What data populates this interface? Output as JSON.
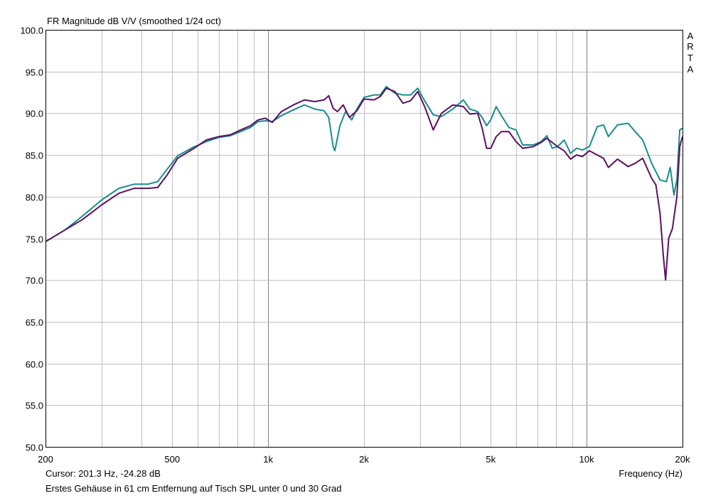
{
  "title": "FR Magnitude dB V/V (smoothed 1/24 oct)",
  "brand": [
    "A",
    "R",
    "T",
    "A"
  ],
  "cursor": "Cursor: 201.3 Hz, -24.28 dB",
  "caption": "Erstes Gehäuse in 61 cm Entfernung auf Tisch SPL unter 0 und 30 Grad",
  "colors": {
    "background": "#ffffff",
    "grid": "#c0c0c0",
    "axis": "#000000"
  },
  "chart_data": {
    "type": "line",
    "title": "FR Magnitude dB V/V (smoothed 1/24 oct)",
    "xlabel": "Frequency (Hz)",
    "ylabel": "",
    "xscale": "log",
    "xlim": [
      200,
      20000
    ],
    "ylim": [
      50,
      100
    ],
    "grid": true,
    "x_ticks": [
      {
        "value": 200,
        "label": "200"
      },
      {
        "value": 500,
        "label": "500"
      },
      {
        "value": 1000,
        "label": "1k"
      },
      {
        "value": 2000,
        "label": "2k"
      },
      {
        "value": 5000,
        "label": "5k"
      },
      {
        "value": 10000,
        "label": "10k"
      },
      {
        "value": 20000,
        "label": "20k"
      }
    ],
    "y_ticks": [
      "100.0",
      "95.0",
      "90.0",
      "85.0",
      "80.0",
      "75.0",
      "70.0",
      "65.0",
      "60.0",
      "55.0",
      "50.0"
    ],
    "series": [
      {
        "color": "#1a8c8c",
        "points": [
          [
            200,
            74.6
          ],
          [
            230,
            76.0
          ],
          [
            260,
            77.6
          ],
          [
            300,
            79.6
          ],
          [
            340,
            81.0
          ],
          [
            380,
            81.5
          ],
          [
            420,
            81.5
          ],
          [
            450,
            81.8
          ],
          [
            480,
            83.2
          ],
          [
            520,
            84.9
          ],
          [
            580,
            85.9
          ],
          [
            640,
            86.6
          ],
          [
            700,
            87.1
          ],
          [
            760,
            87.3
          ],
          [
            820,
            87.8
          ],
          [
            880,
            88.3
          ],
          [
            930,
            89.0
          ],
          [
            980,
            89.1
          ],
          [
            1030,
            89.0
          ],
          [
            1100,
            89.7
          ],
          [
            1200,
            90.4
          ],
          [
            1300,
            91.0
          ],
          [
            1400,
            90.5
          ],
          [
            1500,
            90.3
          ],
          [
            1550,
            89.5
          ],
          [
            1600,
            86.0
          ],
          [
            1620,
            85.5
          ],
          [
            1680,
            88.5
          ],
          [
            1750,
            90.2
          ],
          [
            1830,
            89.2
          ],
          [
            1900,
            90.5
          ],
          [
            2000,
            91.9
          ],
          [
            2150,
            92.2
          ],
          [
            2250,
            92.2
          ],
          [
            2350,
            93.2
          ],
          [
            2500,
            92.4
          ],
          [
            2650,
            92.2
          ],
          [
            2800,
            92.2
          ],
          [
            2950,
            93.0
          ],
          [
            3100,
            91.5
          ],
          [
            3300,
            89.8
          ],
          [
            3500,
            89.6
          ],
          [
            3800,
            90.5
          ],
          [
            4100,
            91.6
          ],
          [
            4300,
            90.5
          ],
          [
            4550,
            90.2
          ],
          [
            4700,
            89.5
          ],
          [
            4850,
            88.5
          ],
          [
            5000,
            89.2
          ],
          [
            5200,
            90.8
          ],
          [
            5400,
            89.7
          ],
          [
            5700,
            88.3
          ],
          [
            6000,
            88.0
          ],
          [
            6300,
            86.2
          ],
          [
            6800,
            86.2
          ],
          [
            7200,
            86.6
          ],
          [
            7500,
            87.3
          ],
          [
            7800,
            85.8
          ],
          [
            8100,
            86.0
          ],
          [
            8500,
            86.8
          ],
          [
            8900,
            85.2
          ],
          [
            9300,
            85.8
          ],
          [
            9700,
            85.6
          ],
          [
            10200,
            86.0
          ],
          [
            10800,
            88.4
          ],
          [
            11300,
            88.6
          ],
          [
            11700,
            87.2
          ],
          [
            12500,
            88.6
          ],
          [
            13500,
            88.8
          ],
          [
            14200,
            87.8
          ],
          [
            15000,
            86.8
          ],
          [
            16000,
            84.0
          ],
          [
            17000,
            82.0
          ],
          [
            17800,
            81.8
          ],
          [
            18300,
            83.5
          ],
          [
            18800,
            80.2
          ],
          [
            19200,
            82.0
          ],
          [
            19600,
            88.0
          ],
          [
            20000,
            88.2
          ]
        ]
      },
      {
        "color": "#5b1060",
        "points": [
          [
            200,
            74.6
          ],
          [
            230,
            76.0
          ],
          [
            260,
            77.2
          ],
          [
            300,
            79.0
          ],
          [
            340,
            80.4
          ],
          [
            380,
            81.0
          ],
          [
            420,
            81.0
          ],
          [
            450,
            81.1
          ],
          [
            480,
            82.5
          ],
          [
            520,
            84.6
          ],
          [
            580,
            85.7
          ],
          [
            640,
            86.8
          ],
          [
            700,
            87.2
          ],
          [
            760,
            87.4
          ],
          [
            820,
            88.0
          ],
          [
            880,
            88.5
          ],
          [
            930,
            89.2
          ],
          [
            980,
            89.4
          ],
          [
            1030,
            88.9
          ],
          [
            1100,
            90.2
          ],
          [
            1200,
            91.0
          ],
          [
            1300,
            91.6
          ],
          [
            1400,
            91.4
          ],
          [
            1500,
            91.6
          ],
          [
            1550,
            92.1
          ],
          [
            1600,
            90.6
          ],
          [
            1650,
            90.2
          ],
          [
            1720,
            91.0
          ],
          [
            1800,
            89.5
          ],
          [
            1900,
            90.3
          ],
          [
            2000,
            91.7
          ],
          [
            2150,
            91.6
          ],
          [
            2250,
            92.0
          ],
          [
            2350,
            93.0
          ],
          [
            2500,
            92.6
          ],
          [
            2650,
            91.2
          ],
          [
            2800,
            91.5
          ],
          [
            2950,
            92.6
          ],
          [
            3100,
            90.8
          ],
          [
            3300,
            88.0
          ],
          [
            3500,
            90.0
          ],
          [
            3800,
            91.0
          ],
          [
            4100,
            90.8
          ],
          [
            4300,
            89.9
          ],
          [
            4550,
            90.0
          ],
          [
            4700,
            88.2
          ],
          [
            4850,
            85.8
          ],
          [
            5000,
            85.8
          ],
          [
            5200,
            87.2
          ],
          [
            5400,
            87.8
          ],
          [
            5700,
            87.8
          ],
          [
            6000,
            86.6
          ],
          [
            6300,
            85.8
          ],
          [
            6800,
            86.0
          ],
          [
            7200,
            86.5
          ],
          [
            7500,
            87.0
          ],
          [
            7800,
            86.5
          ],
          [
            8100,
            86.0
          ],
          [
            8500,
            85.5
          ],
          [
            8900,
            84.5
          ],
          [
            9300,
            85.0
          ],
          [
            9700,
            84.8
          ],
          [
            10200,
            85.5
          ],
          [
            10800,
            85.0
          ],
          [
            11300,
            84.6
          ],
          [
            11700,
            83.5
          ],
          [
            12500,
            84.5
          ],
          [
            13500,
            83.6
          ],
          [
            14200,
            84.0
          ],
          [
            15000,
            84.6
          ],
          [
            16000,
            82.2
          ],
          [
            16500,
            81.4
          ],
          [
            17000,
            78.0
          ],
          [
            17400,
            73.0
          ],
          [
            17700,
            70.0
          ],
          [
            18100,
            75.0
          ],
          [
            18600,
            76.2
          ],
          [
            19200,
            80.0
          ],
          [
            19600,
            86.0
          ],
          [
            20000,
            87.2
          ]
        ]
      }
    ]
  }
}
